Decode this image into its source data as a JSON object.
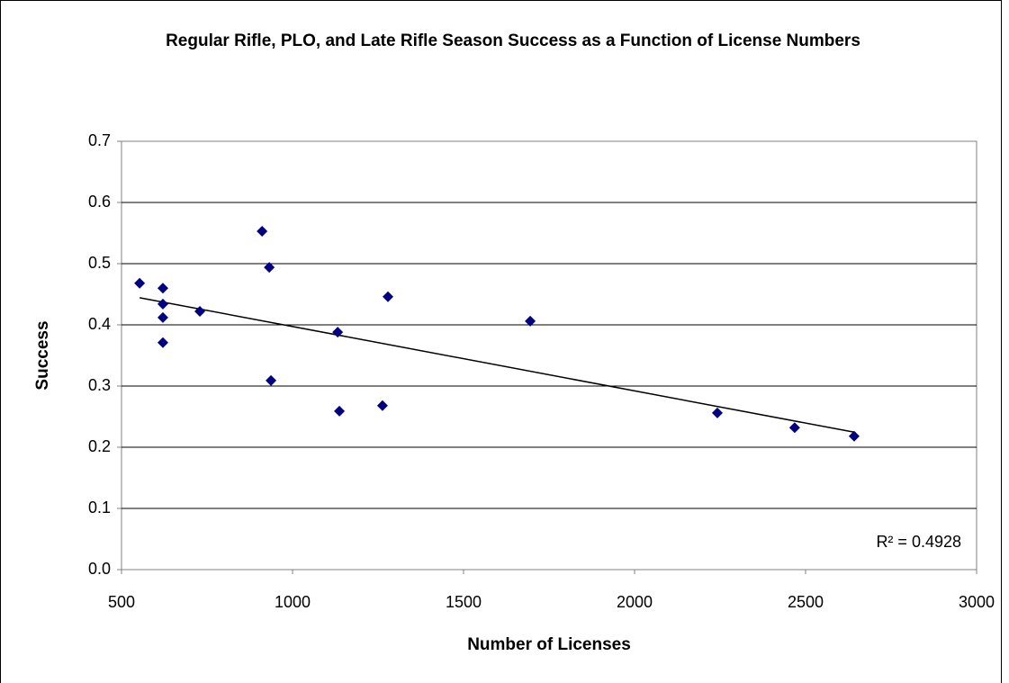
{
  "chart_data": {
    "type": "scatter",
    "title": "Regular Rifle, PLO, and Late Rifle Season Success as a Function of License Numbers",
    "x_label": "Number of Licenses",
    "y_label": "Success",
    "annotation": "R² = 0.4928",
    "trendline": true,
    "series": [
      {
        "color": "#000080",
        "x": [
          553,
          621,
          621,
          621,
          621,
          729,
          911,
          932,
          937,
          1132,
          1137,
          1263,
          1279,
          1695,
          2242,
          2468,
          2642
        ],
        "values": [
          0.468,
          0.46,
          0.434,
          0.412,
          0.371,
          0.422,
          0.553,
          0.494,
          0.309,
          0.388,
          0.259,
          0.268,
          0.446,
          0.406,
          0.256,
          0.232,
          0.218
        ]
      }
    ],
    "xlim": [
      500,
      3000
    ],
    "xticks": [
      500,
      1000,
      1500,
      2000,
      2500,
      3000
    ],
    "ylim": [
      0,
      0.7
    ],
    "yticks": [
      {
        "value": 0,
        "label": "0.0"
      },
      0.1,
      0.2,
      0.3,
      0.4,
      0.5,
      0.6,
      0.7
    ],
    "grid": true
  }
}
